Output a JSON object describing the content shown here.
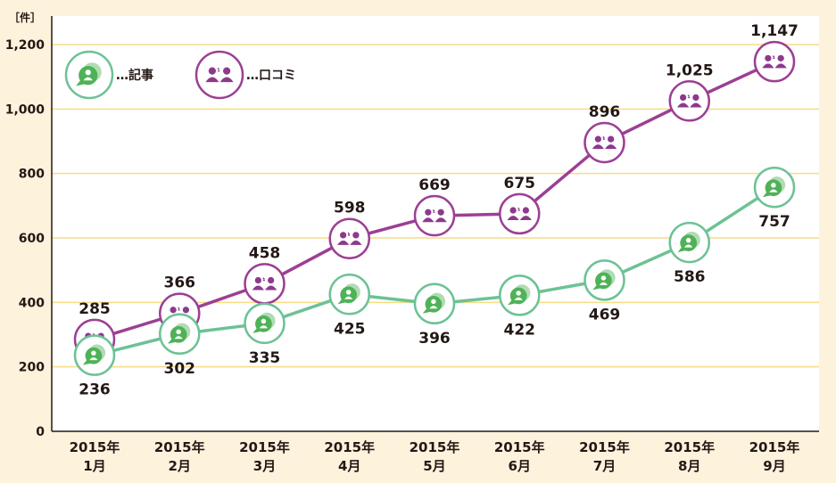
{
  "chart_data": {
    "type": "line",
    "unit_label": "［件］",
    "categories": [
      [
        "2015年",
        "1月"
      ],
      [
        "2015年",
        "2月"
      ],
      [
        "2015年",
        "3月"
      ],
      [
        "2015年",
        "4月"
      ],
      [
        "2015年",
        "5月"
      ],
      [
        "2015年",
        "6月"
      ],
      [
        "2015年",
        "7月"
      ],
      [
        "2015年",
        "8月"
      ],
      [
        "2015年",
        "9月"
      ]
    ],
    "y_ticks": [
      "0",
      "200",
      "400",
      "600",
      "800",
      "1,000",
      "1,200"
    ],
    "ylim": [
      0,
      1200
    ],
    "grid": true,
    "legend_position": "top-left",
    "series": [
      {
        "name": "…記事",
        "icon": "chat-bubble-person-icon",
        "color": "#6cc295",
        "fill": "#4fb257",
        "values": [
          236,
          302,
          335,
          425,
          396,
          422,
          469,
          586,
          757
        ],
        "labels": [
          "236",
          "302",
          "335",
          "425",
          "396",
          "422",
          "469",
          "586",
          "757"
        ],
        "label_position": "below"
      },
      {
        "name": "…口コミ",
        "icon": "two-people-icon",
        "color": "#9c3f94",
        "fill": "#8c3a8c",
        "values": [
          285,
          366,
          458,
          598,
          669,
          675,
          896,
          1025,
          1147
        ],
        "labels": [
          "285",
          "366",
          "458",
          "598",
          "669",
          "675",
          "896",
          "1,025",
          "1,147"
        ],
        "label_position": "above"
      }
    ]
  },
  "colors": {
    "background": "#fdf2dc",
    "plot_background": "#ffffff",
    "gridline": "#f6dc86",
    "axis": "#231815"
  }
}
